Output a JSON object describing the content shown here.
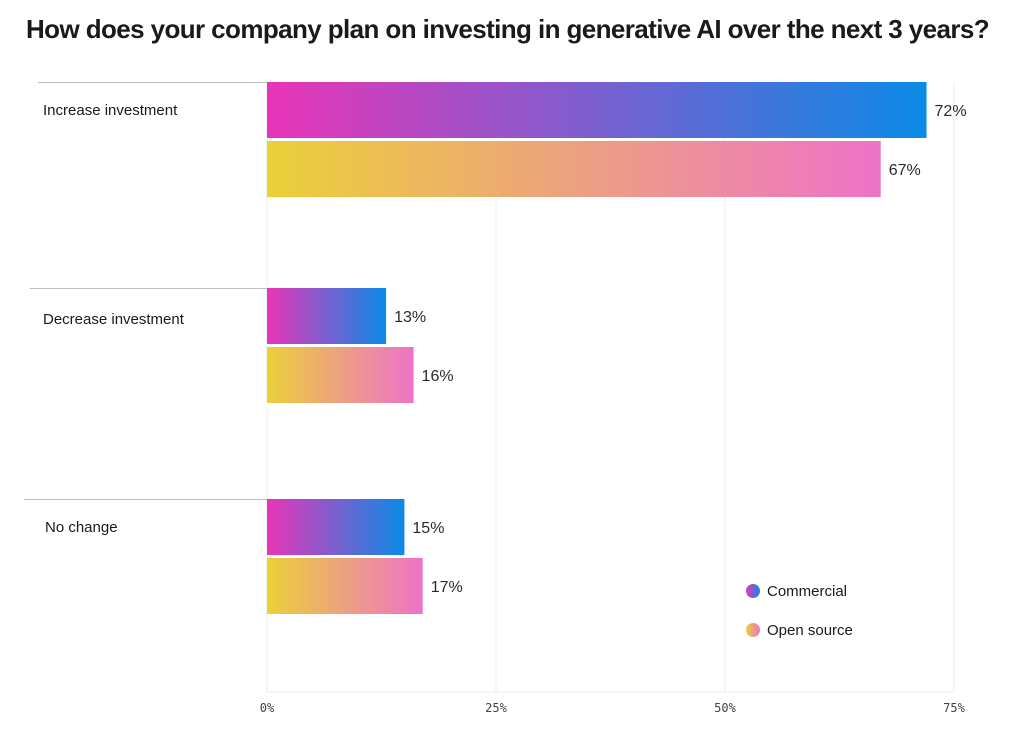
{
  "chart_data": {
    "type": "bar",
    "orientation": "horizontal",
    "title": "How does your company plan on investing in generative AI over the next 3 years?",
    "categories": [
      "Increase investment",
      "Decrease investment",
      "No change"
    ],
    "series": [
      {
        "name": "Commercial",
        "values": [
          72,
          13,
          15
        ],
        "value_labels": [
          "72%",
          "13%",
          "15%"
        ],
        "gradient": [
          "#e935b8",
          "#0a8ae6"
        ]
      },
      {
        "name": "Open source",
        "values": [
          67,
          16,
          17
        ],
        "value_labels": [
          "67%",
          "16%",
          "17%"
        ],
        "gradient": [
          "#ebd038",
          "#ee72c8"
        ]
      }
    ],
    "xlim": [
      0,
      75
    ],
    "xticks": [
      0,
      25,
      50,
      75
    ],
    "xtick_labels": [
      "0%",
      "25%",
      "50%",
      "75%"
    ],
    "xlabel": "",
    "ylabel": "",
    "grid": true,
    "legend_position": "bottom-right"
  }
}
